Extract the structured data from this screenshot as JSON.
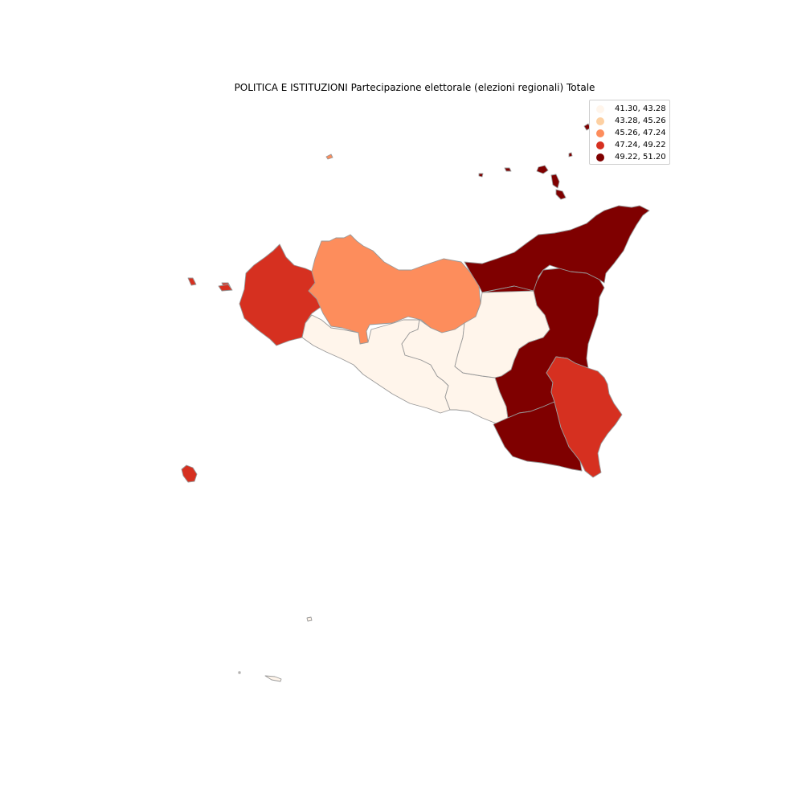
{
  "title": "POLITICA E ISTITUZIONI Partecipazione elettorale (elezioni regionali) Totale",
  "legend": [
    {
      "label": "41.30, 43.28",
      "color": "#fff5eb"
    },
    {
      "label": "43.28, 45.26",
      "color": "#fdd0a2"
    },
    {
      "label": "45.26, 47.24",
      "color": "#fd8d5c"
    },
    {
      "label": "47.24, 49.22",
      "color": "#d63020"
    },
    {
      "label": "49.22, 51.20",
      "color": "#7f0000"
    }
  ],
  "chart_data": {
    "type": "choropleth",
    "title": "POLITICA E ISTITUZIONI Partecipazione elettorale (elezioni regionali) Totale",
    "bins": [
      "41.30, 43.28",
      "43.28, 45.26",
      "45.26, 47.24",
      "47.24, 49.22",
      "49.22, 51.20"
    ],
    "colormap": "OrRd",
    "border_color": "#999999",
    "legend_placement": "top-right",
    "regions": [
      {
        "id": "trapani",
        "bin": 3
      },
      {
        "id": "palermo",
        "bin": 2
      },
      {
        "id": "agrigento",
        "bin": 0
      },
      {
        "id": "caltanissetta",
        "bin": 0
      },
      {
        "id": "enna",
        "bin": 0
      },
      {
        "id": "messina",
        "bin": 4
      },
      {
        "id": "catania",
        "bin": 4
      },
      {
        "id": "ragusa",
        "bin": 4
      },
      {
        "id": "siracusa",
        "bin": 3
      }
    ]
  }
}
